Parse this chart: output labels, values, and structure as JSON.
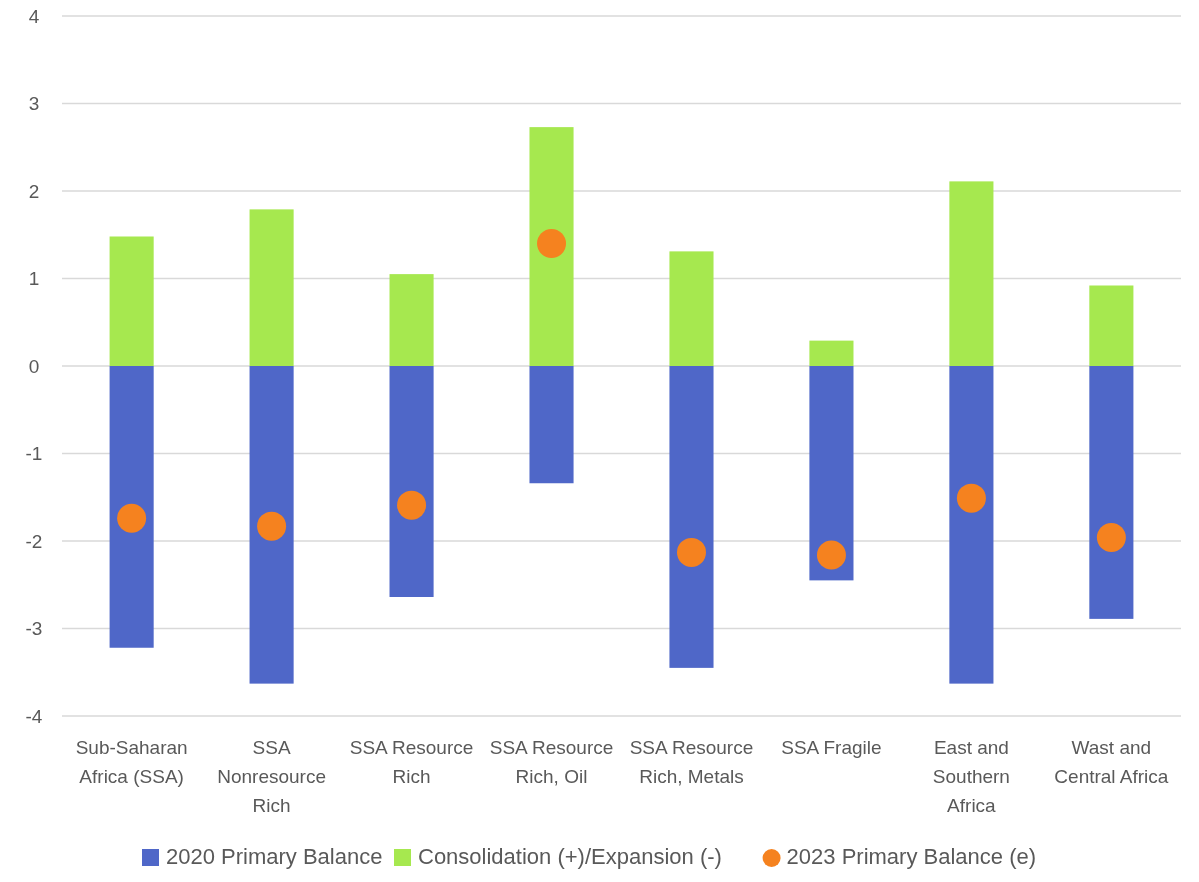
{
  "chart_data": {
    "type": "bar",
    "stacked": true,
    "categories": [
      "Sub-Saharan Africa (SSA)",
      "SSA Nonresource Rich",
      "SSA Resource Rich",
      "SSA Resource Rich, Oil",
      "SSA Resource Rich, Metals",
      "SSA Fragile",
      "East and Southern Africa",
      "Wast and Central Africa"
    ],
    "series": [
      {
        "name": "2020 Primary Balance",
        "color": "#4f67c8",
        "values": [
          -3.22,
          -3.63,
          -2.64,
          -1.34,
          -3.45,
          -2.45,
          -3.63,
          -2.89
        ]
      },
      {
        "name": "Consolidation (+)/Expansion (-)",
        "color": "#a6e84f",
        "values": [
          1.48,
          1.79,
          1.05,
          2.73,
          1.31,
          0.29,
          2.11,
          0.92
        ]
      },
      {
        "name": "2023 Primary Balance (e)",
        "type": "scatter",
        "color": "#f5821f",
        "marker": "circle",
        "x": [
          "Sub-Saharan Africa (SSA)",
          "SSA Nonresource Rich",
          "SSA Resource Rich",
          "SSA Resource Rich, Oil",
          "SSA Resource Rich, Metals",
          "SSA Fragile",
          "East and Southern Africa",
          "Wast and Central Africa"
        ],
        "values": [
          -1.74,
          -1.83,
          -1.59,
          1.4,
          -2.13,
          -2.16,
          -1.51,
          -1.96
        ]
      }
    ],
    "ylim": [
      -4,
      4
    ],
    "yticks": [
      -4,
      -3,
      -2,
      -1,
      0,
      1,
      2,
      3,
      4
    ],
    "grid": "y",
    "legend": "bottom"
  }
}
